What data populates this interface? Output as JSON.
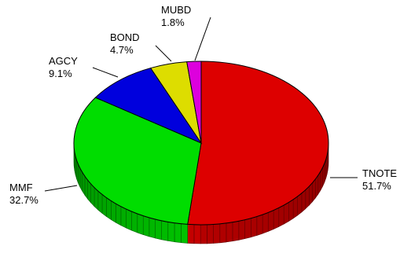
{
  "chart_data": {
    "type": "pie",
    "style": "3d",
    "categories": [
      "TNOTE",
      "MMF",
      "AGCY",
      "BOND",
      "MUBD"
    ],
    "values": [
      51.7,
      32.7,
      9.1,
      4.7,
      1.8
    ],
    "value_labels": [
      "51.7%",
      "32.7%",
      "9.1%",
      "4.7%",
      "1.8%"
    ],
    "colors": [
      "#dd0000",
      "#00dd00",
      "#0000dd",
      "#dddd00",
      "#dd00dd"
    ],
    "title": "",
    "legend": "none"
  }
}
